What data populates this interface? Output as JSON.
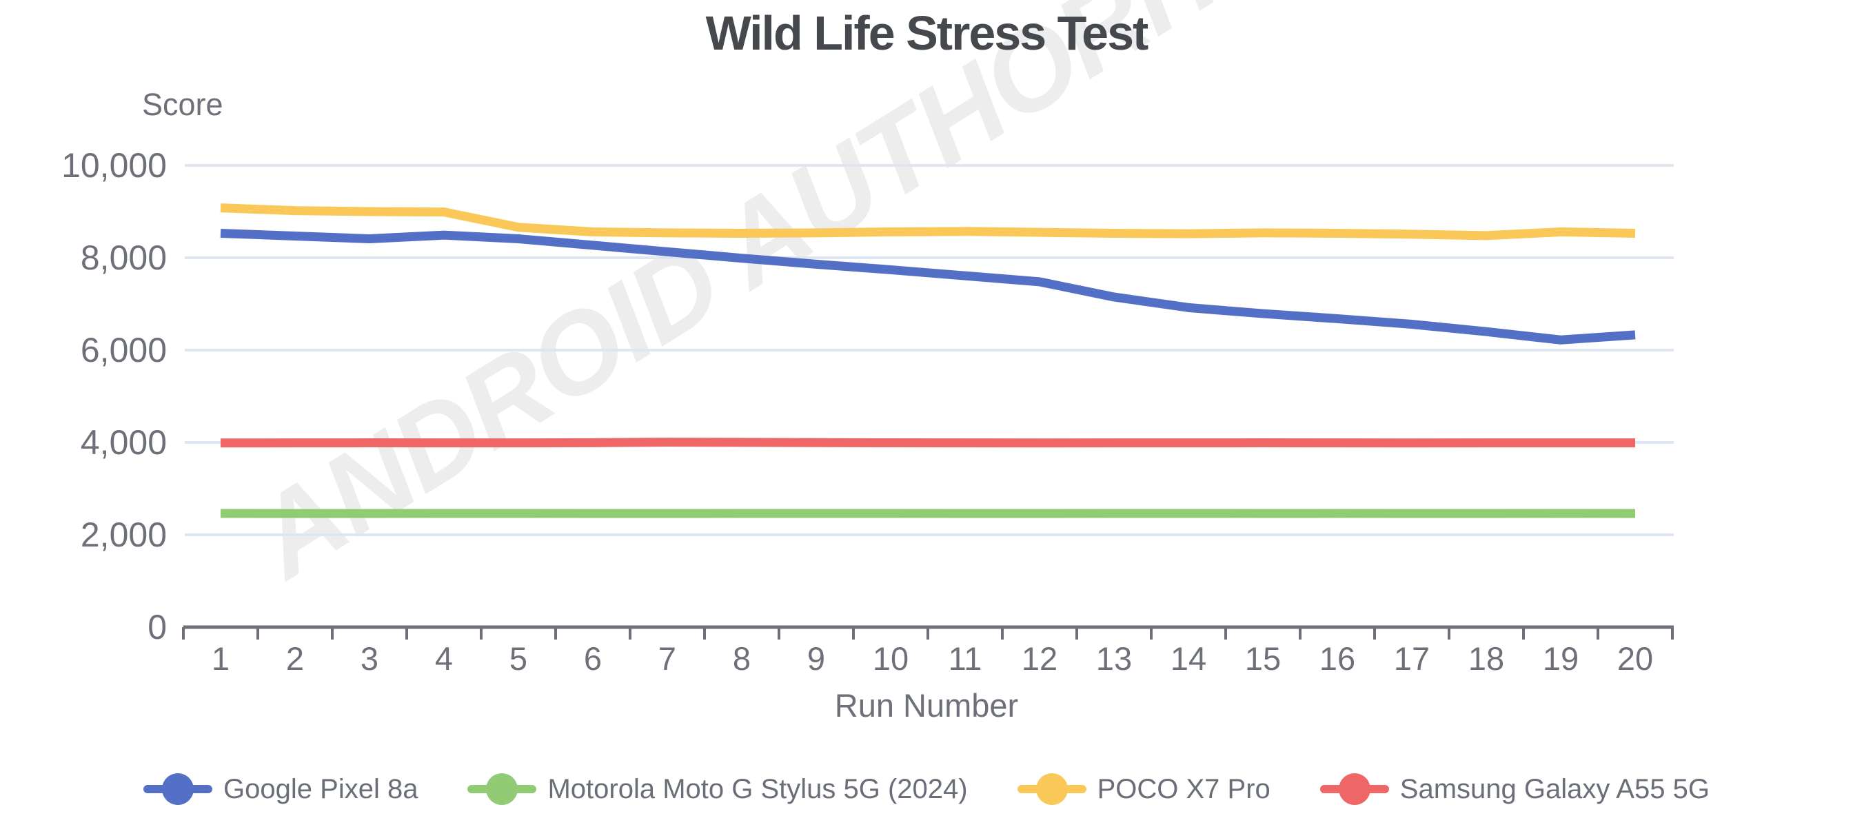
{
  "watermark": {
    "text": "ANDROID AUTHORITY"
  },
  "colors": {
    "background": "#ffffff",
    "title": "#45484c",
    "axis_line": "#6e7079",
    "tick_label": "#6e7079",
    "axis_title": "#6e7079",
    "legend_label": "#696e78",
    "gridline": "#e0e6f1",
    "watermark": "#ededed"
  },
  "chart_data": {
    "type": "line",
    "title": "Wild Life Stress Test",
    "xlabel": "Run Number",
    "ylabel": "Score",
    "x_categories": [
      "1",
      "2",
      "3",
      "4",
      "5",
      "6",
      "7",
      "8",
      "9",
      "10",
      "11",
      "12",
      "13",
      "14",
      "15",
      "16",
      "17",
      "18",
      "19",
      "20"
    ],
    "ylim": [
      0,
      10000
    ],
    "y_tick_interval": 2000,
    "y_tick_labels": [
      "0",
      "2,000",
      "4,000",
      "6,000",
      "8,000",
      "10,000"
    ],
    "grid": true,
    "legend_position": "bottom",
    "series": [
      {
        "name": "Google Pixel 8a",
        "color": "#5470c6",
        "values": [
          8530,
          8470,
          8410,
          8490,
          8410,
          8270,
          8130,
          7990,
          7860,
          7740,
          7610,
          7480,
          7150,
          6920,
          6790,
          6680,
          6560,
          6400,
          6220,
          6330
        ]
      },
      {
        "name": "Motorola Moto G Stylus 5G (2024)",
        "color": "#91cc75",
        "values": [
          2462,
          2460,
          2461,
          2463,
          2462,
          2460,
          2461,
          2462,
          2463,
          2462,
          2461,
          2460,
          2462,
          2463,
          2461,
          2462,
          2460,
          2461,
          2462,
          2461
        ]
      },
      {
        "name": "POCO X7 Pro",
        "color": "#fac858",
        "values": [
          9080,
          9020,
          9000,
          8990,
          8660,
          8560,
          8540,
          8530,
          8540,
          8560,
          8570,
          8550,
          8530,
          8520,
          8540,
          8530,
          8510,
          8480,
          8560,
          8530
        ]
      },
      {
        "name": "Samsung Galaxy A55 5G",
        "color": "#ee6666",
        "values": [
          3988,
          3990,
          3992,
          3990,
          3991,
          3995,
          4005,
          4002,
          3996,
          3992,
          3990,
          3989,
          3991,
          3990,
          3992,
          3990,
          3988,
          3990,
          3991,
          3990
        ]
      }
    ]
  }
}
